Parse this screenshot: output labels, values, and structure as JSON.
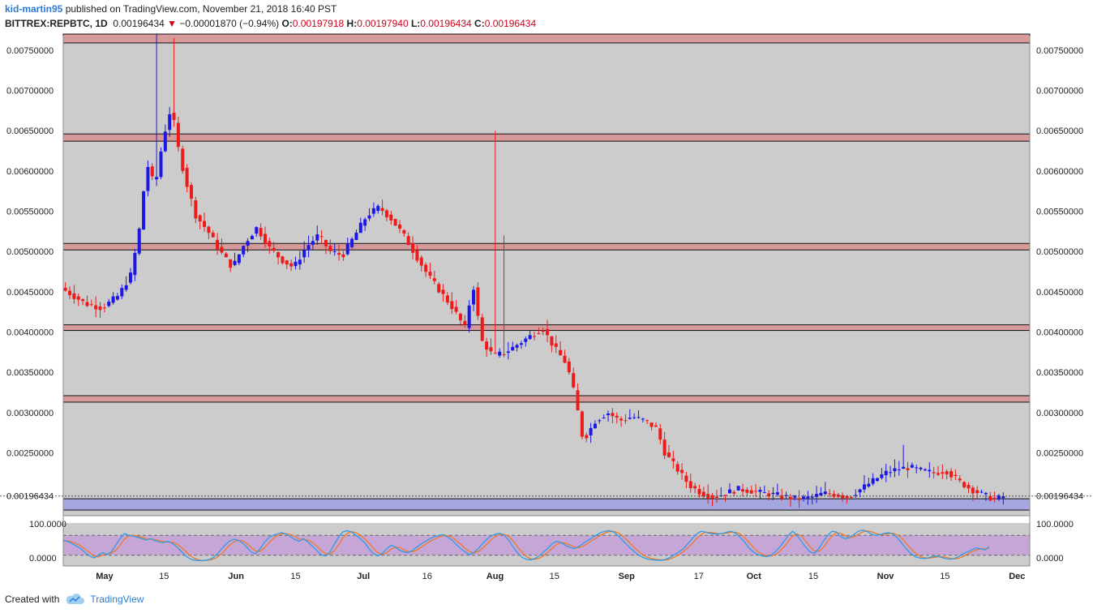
{
  "header": {
    "author": "kid-martin95",
    "published_text": "published on TradingView.com, November 21, 2018 16:40 PST",
    "symbol": "BITTREX:REPBTC, 1D",
    "last_price": "0.00196434",
    "change_arrow": "▼",
    "change": "−0.00001870 (−0.94%)",
    "open_label": "O:",
    "open": "0.00197918",
    "high_label": "H:",
    "high": "0.00197940",
    "low_label": "L:",
    "low": "0.00196434",
    "close_label": "C:",
    "close": "0.00196434"
  },
  "footer": {
    "created_with": "Created with",
    "brand": "TradingView"
  },
  "colors": {
    "background": "#cccccc",
    "up_candle": "#1c17e6",
    "down_candle": "#ee1b1b",
    "resistance_zone": "#d79a9a",
    "support_zone": "#a6a6df",
    "stoch_band": "#c6a6d6",
    "stoch_k": "#2e9be8",
    "stoch_d": "#ef7a26"
  },
  "chart_data": {
    "type": "candlestick",
    "price_axis": {
      "ticks": [
        "0.00750000",
        "0.00700000",
        "0.00650000",
        "0.00600000",
        "0.00550000",
        "0.00500000",
        "0.00450000",
        "0.00400000",
        "0.00350000",
        "0.00300000",
        "0.00250000"
      ],
      "tick_values": [
        0.0075,
        0.007,
        0.0065,
        0.006,
        0.0055,
        0.005,
        0.0045,
        0.004,
        0.0035,
        0.003,
        0.0025
      ],
      "current_label": "0.00196434",
      "current_value": 0.00196434,
      "range": [
        0.00172,
        0.00768
      ]
    },
    "time_axis": {
      "labels": [
        "May",
        "15",
        "Jun",
        "15",
        "Jul",
        "16",
        "Aug",
        "15",
        "Sep",
        "17",
        "Oct",
        "15",
        "Nov",
        "15",
        "Dec"
      ],
      "day_index": [
        4,
        18,
        35,
        49,
        65,
        80,
        96,
        110,
        127,
        144,
        157,
        171,
        188,
        202,
        219
      ]
    },
    "zones": [
      {
        "kind": "resistance",
        "low": 0.00759,
        "high": 0.0077
      },
      {
        "kind": "resistance",
        "low": 0.00637,
        "high": 0.00646
      },
      {
        "kind": "resistance",
        "low": 0.00502,
        "high": 0.0051
      },
      {
        "kind": "resistance",
        "low": 0.00402,
        "high": 0.00409
      },
      {
        "kind": "resistance",
        "low": 0.00313,
        "high": 0.00321
      },
      {
        "kind": "support",
        "low": 0.00179,
        "high": 0.00193
      }
    ],
    "stochastic": {
      "axis_labels": [
        "100.0000",
        "0.0000"
      ],
      "upper_band": 80,
      "lower_band": 20,
      "k": [
        65,
        62,
        55,
        48,
        40,
        28,
        18,
        12,
        20,
        28,
        22,
        30,
        50,
        70,
        85,
        80,
        78,
        74,
        70,
        66,
        70,
        64,
        60,
        58,
        62,
        56,
        45,
        32,
        18,
        10,
        5,
        4,
        4,
        6,
        10,
        20,
        35,
        50,
        62,
        68,
        66,
        58,
        45,
        30,
        25,
        38,
        58,
        72,
        80,
        84,
        88,
        84,
        76,
        68,
        62,
        70,
        60,
        48,
        35,
        22,
        18,
        28,
        52,
        74,
        90,
        94,
        90,
        80,
        70,
        58,
        40,
        25,
        18,
        25,
        38,
        50,
        45,
        35,
        30,
        28,
        35,
        45,
        55,
        62,
        70,
        76,
        80,
        82,
        75,
        66,
        52,
        40,
        30,
        22,
        28,
        40,
        55,
        68,
        78,
        84,
        86,
        80,
        65,
        45,
        28,
        14,
        8,
        6,
        10,
        18,
        30,
        42,
        55,
        62,
        58,
        50,
        44,
        40,
        46,
        55,
        64,
        72,
        80,
        88,
        92,
        94,
        90,
        80,
        66,
        52,
        40,
        28,
        18,
        12,
        8,
        6,
        5,
        5,
        8,
        14,
        22,
        30,
        40,
        55,
        70,
        84,
        92,
        90,
        86,
        84,
        84,
        86,
        90,
        92,
        86,
        74,
        60,
        42,
        30,
        22,
        18,
        16,
        20,
        30,
        44,
        62,
        80,
        92,
        80,
        62,
        44,
        30,
        26,
        40,
        62,
        80,
        92,
        90,
        76,
        70,
        74,
        82,
        92,
        96,
        92,
        84,
        80,
        82,
        86,
        88,
        84,
        72,
        56,
        40,
        26,
        16,
        12,
        10,
        12,
        16,
        18,
        14,
        10,
        8,
        10,
        16,
        24,
        30,
        36,
        42,
        40,
        36,
        46
      ],
      "d": [
        62,
        63,
        60,
        55,
        48,
        38,
        28,
        18,
        15,
        20,
        24,
        26,
        34,
        50,
        68,
        78,
        81,
        77,
        74,
        70,
        68,
        67,
        64,
        61,
        60,
        59,
        54,
        44,
        32,
        20,
        11,
        6,
        4,
        5,
        7,
        12,
        22,
        35,
        49,
        60,
        65,
        64,
        56,
        44,
        33,
        31,
        41,
        56,
        70,
        79,
        84,
        85,
        83,
        76,
        69,
        67,
        66,
        59,
        48,
        35,
        25,
        23,
        33,
        51,
        72,
        86,
        91,
        88,
        80,
        69,
        56,
        41,
        28,
        23,
        27,
        38,
        44,
        43,
        37,
        31,
        31,
        36,
        45,
        54,
        62,
        69,
        75,
        79,
        79,
        74,
        64,
        53,
        41,
        31,
        27,
        31,
        41,
        54,
        67,
        77,
        83,
        83,
        77,
        63,
        46,
        29,
        17,
        9,
        8,
        11,
        19,
        30,
        42,
        53,
        58,
        56,
        51,
        45,
        43,
        47,
        55,
        64,
        72,
        80,
        87,
        91,
        92,
        88,
        79,
        66,
        53,
        40,
        29,
        19,
        13,
        9,
        7,
        6,
        6,
        9,
        15,
        22,
        31,
        42,
        55,
        70,
        82,
        89,
        89,
        87,
        85,
        85,
        87,
        89,
        89,
        84,
        73,
        59,
        44,
        31,
        23,
        19,
        18,
        22,
        31,
        45,
        62,
        78,
        84,
        78,
        62,
        45,
        33,
        32,
        43,
        61,
        78,
        88,
        86,
        79,
        73,
        75,
        83,
        90,
        93,
        91,
        86,
        82,
        83,
        85,
        86,
        81,
        71,
        56,
        41,
        28,
        18,
        13,
        11,
        13,
        15,
        16,
        14,
        11,
        9,
        11,
        16,
        23,
        30,
        36,
        39,
        39,
        41
      ]
    }
  }
}
